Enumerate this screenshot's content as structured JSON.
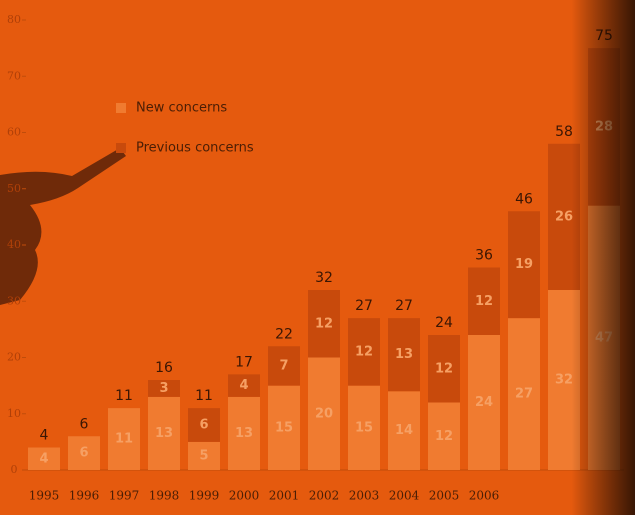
{
  "chart_data": {
    "type": "stacked_bar",
    "categories": [
      "1995",
      "1996",
      "1997",
      "1998",
      "1999",
      "2000",
      "2001",
      "2002",
      "2003",
      "2004",
      "2005",
      "2006",
      null,
      null,
      null
    ],
    "series": [
      {
        "name": "New concerns",
        "color": "#f07b30",
        "values": [
          4,
          6,
          11,
          13,
          5,
          13,
          15,
          20,
          15,
          14,
          12,
          24,
          27,
          32,
          47
        ]
      },
      {
        "name": "Previous concerns",
        "color": "#c84a0c",
        "values": [
          0,
          0,
          0,
          3,
          6,
          4,
          7,
          12,
          12,
          13,
          12,
          12,
          19,
          26,
          28
        ]
      }
    ],
    "totals": [
      4,
      6,
      11,
      16,
      11,
      17,
      22,
      32,
      27,
      27,
      24,
      36,
      46,
      58,
      75
    ],
    "ylim": [
      0,
      80
    ],
    "yticks": [
      0,
      10,
      20,
      30,
      40,
      50,
      60,
      70,
      80
    ],
    "legend": "top-left"
  }
}
